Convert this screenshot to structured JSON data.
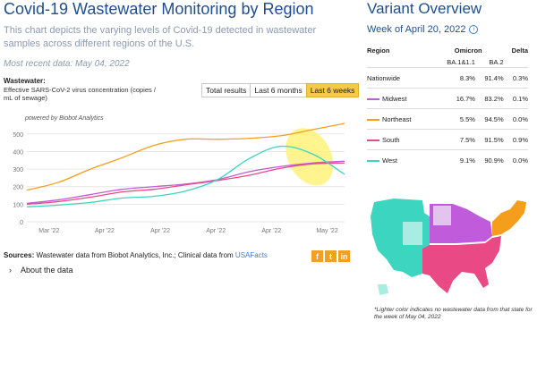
{
  "header": {
    "title": "Covid-19 Wastewater Monitoring by Region",
    "description": "This chart depicts the varying levels of Covid-19 detected in wastewater samples across different regions of the U.S.",
    "recent": "Most recent data: May 04, 2022"
  },
  "chart_controls": {
    "wastewater_label": "Wastewater:",
    "wastewater_sub": "Effective SARS-CoV-2 virus concentration (copies / mL of sewage)",
    "tabs": [
      "Total results",
      "Last 6 months",
      "Last 6 weeks"
    ],
    "active_tab": "Last 6 weeks",
    "powered_by": "powered by Biobot Analytics"
  },
  "chart_data": {
    "type": "line",
    "xlabel": "",
    "ylabel": "",
    "ylim": [
      0,
      550
    ],
    "yticks": [
      0,
      100,
      200,
      300,
      400,
      500
    ],
    "xtick_labels": [
      "Mar '22",
      "Apr '22",
      "Apr '22",
      "Apr '22",
      "Apr '22",
      "May '22"
    ],
    "x": [
      0,
      1,
      2,
      3,
      4,
      5,
      6,
      7,
      8,
      9,
      10
    ],
    "series": [
      {
        "name": "Northeast",
        "color": "#f59e1b",
        "values": [
          180,
          225,
          300,
          365,
          435,
          470,
          470,
          475,
          490,
          525,
          560
        ]
      },
      {
        "name": "Midwest",
        "color": "#c05bdb",
        "values": [
          105,
          125,
          155,
          185,
          200,
          215,
          240,
          285,
          315,
          335,
          345
        ]
      },
      {
        "name": "South",
        "color": "#e94a86",
        "values": [
          100,
          115,
          140,
          170,
          185,
          210,
          235,
          265,
          305,
          330,
          335
        ]
      },
      {
        "name": "West",
        "color": "#3cd6c0",
        "values": [
          85,
          95,
          110,
          135,
          145,
          175,
          240,
          360,
          430,
          385,
          270
        ]
      }
    ],
    "highlight": "last 6 weeks",
    "grid": true,
    "legend": "none"
  },
  "footer": {
    "sources_prefix": "Sources:",
    "sources_text": " Wastewater data from Biobot Analytics, Inc.; Clinical data from ",
    "sources_link": "USAFacts",
    "social": [
      "f",
      "t",
      "in"
    ],
    "about": "About the data"
  },
  "variant": {
    "title": "Variant Overview",
    "week": "Week of April 20, 2022",
    "col_region": "Region",
    "col_omicron": "Omicron",
    "col_delta": "Delta",
    "sub_ba1": "BA.1&1.1",
    "sub_ba2": "BA.2",
    "rows": [
      {
        "region": "Nationwide",
        "ba1": "8.3%",
        "ba2": "91.4%",
        "delta": "0.3%",
        "color": ""
      },
      {
        "region": "Midwest",
        "ba1": "16.7%",
        "ba2": "83.2%",
        "delta": "0.1%",
        "color": "#c05bdb"
      },
      {
        "region": "Northeast",
        "ba1": "5.5%",
        "ba2": "94.5%",
        "delta": "0.0%",
        "color": "#f59e1b"
      },
      {
        "region": "South",
        "ba1": "7.5%",
        "ba2": "91.5%",
        "delta": "0.9%",
        "color": "#e94a86"
      },
      {
        "region": "West",
        "ba1": "9.1%",
        "ba2": "90.9%",
        "delta": "0.0%",
        "color": "#3cd6c0"
      }
    ],
    "map_note": "*Lighter color indicates no wastewater data from that state for the week of May 04, 2022"
  }
}
